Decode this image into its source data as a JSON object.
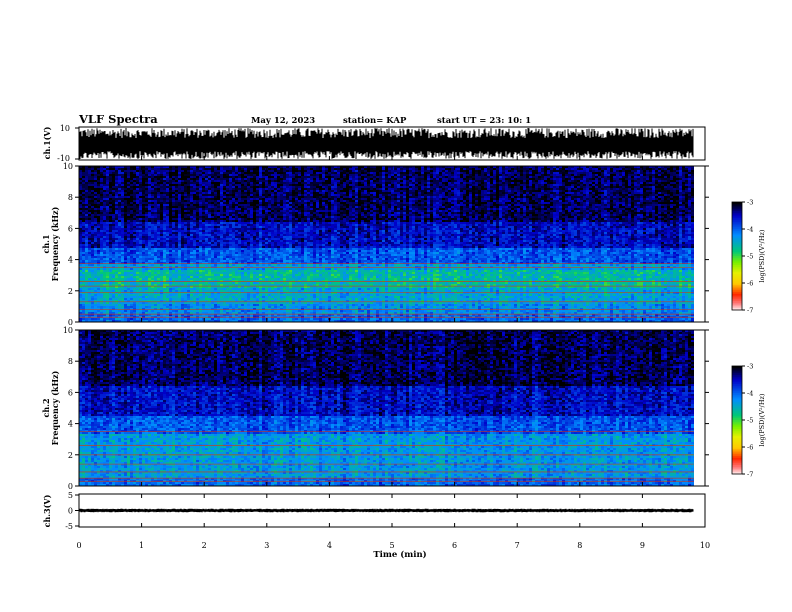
{
  "header": {
    "title": "VLF Spectra",
    "date": "May 12, 2023",
    "station": "station= KAP",
    "start": "start UT = 23: 10: 1"
  },
  "chart_data": [
    {
      "type": "line",
      "panel": "ch1-waveform",
      "ylabel": "ch.1(V)",
      "ylim": [
        -10,
        10
      ],
      "y_tick_labels": [
        "10",
        "-10"
      ],
      "xlim": [
        0,
        10
      ],
      "data_extent_x": [
        0,
        9.82
      ],
      "series": [
        {
          "amplitude_range": [
            -10,
            10
          ],
          "color": "#000000"
        }
      ]
    },
    {
      "type": "heatmap",
      "panel": "ch1-spectrogram",
      "ylabel": "ch.1\nFrequency (kHz)",
      "ylim": [
        0,
        10
      ],
      "y_ticks": [
        0,
        2,
        4,
        6,
        8,
        10
      ],
      "xlim": [
        0,
        10
      ],
      "data_extent_x": [
        0,
        9.82
      ],
      "color_scale": {
        "label": "log(PSD)(V²/Hz)",
        "min": -7,
        "max": -3,
        "ticks": [
          -3,
          -4,
          -5,
          -6,
          -7
        ]
      },
      "band_profile": [
        {
          "f_low": 0.0,
          "f_high": 0.6,
          "log_psd": -4.0
        },
        {
          "f_low": 0.6,
          "f_high": 1.2,
          "log_psd": -4.2
        },
        {
          "f_low": 1.2,
          "f_high": 2.2,
          "log_psd": -4.4
        },
        {
          "f_low": 2.2,
          "f_high": 3.4,
          "log_psd": -4.6
        },
        {
          "f_low": 3.4,
          "f_high": 3.8,
          "log_psd": -4.3
        },
        {
          "f_low": 3.8,
          "f_high": 4.8,
          "log_psd": -3.9
        },
        {
          "f_low": 4.8,
          "f_high": 6.5,
          "log_psd": -3.5
        },
        {
          "f_low": 6.5,
          "f_high": 10.0,
          "log_psd": -3.2
        }
      ],
      "tone_lines_khz": [
        0.3,
        0.5,
        0.8,
        1.3,
        1.9,
        2.3,
        2.6,
        3.5,
        3.75
      ]
    },
    {
      "type": "heatmap",
      "panel": "ch2-spectrogram",
      "ylabel": "ch.2\nFrequency (kHz)",
      "ylim": [
        0,
        10
      ],
      "y_ticks": [
        0,
        2,
        4,
        6,
        8,
        10
      ],
      "xlim": [
        0,
        10
      ],
      "data_extent_x": [
        0,
        9.82
      ],
      "color_scale": {
        "label": "log(PSD)(V²/Hz)",
        "min": -7,
        "max": -3,
        "ticks": [
          -3,
          -4,
          -5,
          -6,
          -7
        ]
      },
      "band_profile": [
        {
          "f_low": 0.0,
          "f_high": 0.6,
          "log_psd": -4.0
        },
        {
          "f_low": 0.6,
          "f_high": 3.4,
          "log_psd": -4.3
        },
        {
          "f_low": 3.4,
          "f_high": 4.5,
          "log_psd": -3.9
        },
        {
          "f_low": 4.5,
          "f_high": 6.5,
          "log_psd": -3.5
        },
        {
          "f_low": 6.5,
          "f_high": 10.0,
          "log_psd": -3.2
        }
      ],
      "tone_lines_khz": [
        0.3,
        0.5,
        0.9,
        1.4,
        2.0,
        2.6,
        3.5
      ]
    },
    {
      "type": "line",
      "panel": "ch3-waveform",
      "ylabel": "ch.3(V)",
      "ylim": [
        -5,
        5
      ],
      "y_ticks": [
        5,
        0,
        -5
      ],
      "xlim": [
        0,
        10
      ],
      "data_extent_x": [
        0,
        9.82
      ],
      "xlabel": "Time (min)",
      "x_ticks": [
        0,
        1,
        2,
        3,
        4,
        5,
        6,
        7,
        8,
        9,
        10
      ],
      "series": [
        {
          "amplitude_range": [
            -0.6,
            0.6
          ],
          "offset": 0.0,
          "color": "#000000"
        }
      ]
    }
  ]
}
